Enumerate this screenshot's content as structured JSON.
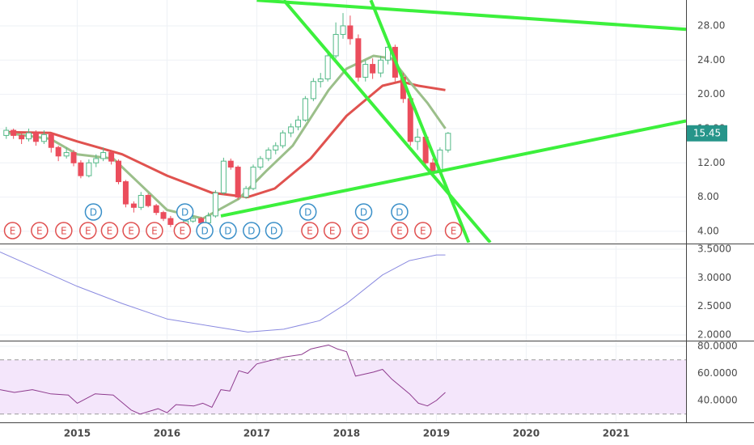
{
  "chart_data": [
    {
      "type": "candlestick",
      "xlim": [
        2014.14,
        2021.78
      ],
      "ylim": [
        2.67,
        31.02
      ],
      "yticks": [
        {
          "value": 4,
          "label": "4.00"
        },
        {
          "value": 8,
          "label": "8.00"
        },
        {
          "value": 12,
          "label": "12.00"
        },
        {
          "value": 16,
          "label": "16.00"
        },
        {
          "value": 20,
          "label": "20.00"
        },
        {
          "value": 24,
          "label": "24.00"
        },
        {
          "value": 28,
          "label": "28.00"
        }
      ],
      "up_color": "#53b987",
      "down_color": "#eb4d5c",
      "price_box_color": "#26958a",
      "x": [
        2014.21,
        2014.29,
        2014.38,
        2014.46,
        2014.54,
        2014.63,
        2014.71,
        2014.79,
        2014.88,
        2014.96,
        2015.04,
        2015.13,
        2015.21,
        2015.29,
        2015.38,
        2015.46,
        2015.54,
        2015.63,
        2015.71,
        2015.79,
        2015.88,
        2015.96,
        2016.04,
        2016.13,
        2016.21,
        2016.29,
        2016.38,
        2016.46,
        2016.54,
        2016.63,
        2016.71,
        2016.79,
        2016.88,
        2016.96,
        2017.04,
        2017.13,
        2017.21,
        2017.29,
        2017.38,
        2017.46,
        2017.54,
        2017.63,
        2017.71,
        2017.79,
        2017.88,
        2017.96,
        2018.04,
        2018.13,
        2018.21,
        2018.29,
        2018.38,
        2018.46,
        2018.54,
        2018.63,
        2018.71,
        2018.79,
        2018.88,
        2018.96,
        2019.04,
        2019.13
      ],
      "candles": [
        [
          15.2,
          16.2,
          14.8,
          15.8
        ],
        [
          15.8,
          16.0,
          14.8,
          15.2
        ],
        [
          15.2,
          15.6,
          14.2,
          14.8
        ],
        [
          14.8,
          16.0,
          14.5,
          15.5
        ],
        [
          15.5,
          15.8,
          14.0,
          14.5
        ],
        [
          14.5,
          15.8,
          14.2,
          15.3
        ],
        [
          15.3,
          15.5,
          13.2,
          13.8
        ],
        [
          13.8,
          14.0,
          12.2,
          12.8
        ],
        [
          12.8,
          13.8,
          12.5,
          13.2
        ],
        [
          13.2,
          13.5,
          11.6,
          12.0
        ],
        [
          12.0,
          12.3,
          10.2,
          10.5
        ],
        [
          10.5,
          12.4,
          10.3,
          12.0
        ],
        [
          12.0,
          13.0,
          11.5,
          12.5
        ],
        [
          12.5,
          13.8,
          12.2,
          13.2
        ],
        [
          13.2,
          13.5,
          11.8,
          12.2
        ],
        [
          12.2,
          12.4,
          9.5,
          9.8
        ],
        [
          9.8,
          10.0,
          6.8,
          7.2
        ],
        [
          7.2,
          7.5,
          6.2,
          6.8
        ],
        [
          6.8,
          8.6,
          6.5,
          8.2
        ],
        [
          8.2,
          8.4,
          6.8,
          7.0
        ],
        [
          7.0,
          7.2,
          5.9,
          6.2
        ],
        [
          6.2,
          6.4,
          5.2,
          5.5
        ],
        [
          5.5,
          5.8,
          4.5,
          4.8
        ],
        [
          4.8,
          5.0,
          4.0,
          4.5
        ],
        [
          4.5,
          5.5,
          4.3,
          5.2
        ],
        [
          5.2,
          5.9,
          5.0,
          5.5
        ],
        [
          5.5,
          5.7,
          4.7,
          5.0
        ],
        [
          5.0,
          6.2,
          4.9,
          5.8
        ],
        [
          5.8,
          8.8,
          5.6,
          8.5
        ],
        [
          8.5,
          12.6,
          8.3,
          12.2
        ],
        [
          12.2,
          12.5,
          11.2,
          11.5
        ],
        [
          11.5,
          11.7,
          7.7,
          8.0
        ],
        [
          8.0,
          9.3,
          7.8,
          9.0
        ],
        [
          9.0,
          11.8,
          8.8,
          11.5
        ],
        [
          11.5,
          12.8,
          11.2,
          12.5
        ],
        [
          12.5,
          13.8,
          12.2,
          13.5
        ],
        [
          13.5,
          14.4,
          13.0,
          14.0
        ],
        [
          14.0,
          15.8,
          13.7,
          15.5
        ],
        [
          15.5,
          16.6,
          15.0,
          16.2
        ],
        [
          16.2,
          17.5,
          15.8,
          17.0
        ],
        [
          17.0,
          19.8,
          16.8,
          19.5
        ],
        [
          19.5,
          21.9,
          19.2,
          21.5
        ],
        [
          21.5,
          22.5,
          20.8,
          21.8
        ],
        [
          21.8,
          24.9,
          21.5,
          24.5
        ],
        [
          24.5,
          28.4,
          24.2,
          27.0
        ],
        [
          27.0,
          29.5,
          26.5,
          28.0
        ],
        [
          28.0,
          29.2,
          25.8,
          26.5
        ],
        [
          26.5,
          27.0,
          21.5,
          22.0
        ],
        [
          22.0,
          24.0,
          21.5,
          23.5
        ],
        [
          23.5,
          24.2,
          21.8,
          22.5
        ],
        [
          22.5,
          24.5,
          22.0,
          24.0
        ],
        [
          24.0,
          25.8,
          23.5,
          25.5
        ],
        [
          25.5,
          25.8,
          21.5,
          22.0
        ],
        [
          22.0,
          22.5,
          19.0,
          19.5
        ],
        [
          19.5,
          19.8,
          14.0,
          14.5
        ],
        [
          14.5,
          16.0,
          13.5,
          15.0
        ],
        [
          15.0,
          15.3,
          11.5,
          12.0
        ],
        [
          12.0,
          12.5,
          10.5,
          11.0
        ],
        [
          11.0,
          13.8,
          10.8,
          13.5
        ],
        [
          13.5,
          15.6,
          13.2,
          15.45
        ]
      ],
      "series": [
        {
          "color": "#e0524f",
          "x": [
            2014.2,
            2014.7,
            2015.0,
            2015.5,
            2016.0,
            2016.5,
            2016.9,
            2017.2,
            2017.6,
            2018.0,
            2018.4,
            2018.6,
            2018.8,
            2019.1
          ],
          "values": [
            15.6,
            15.5,
            14.5,
            13,
            10.5,
            8.5,
            8.0,
            9,
            12.5,
            17.5,
            21,
            21.5,
            21,
            20.5
          ]
        },
        {
          "color": "#9bbf8a",
          "x": [
            2014.2,
            2014.7,
            2015.0,
            2015.4,
            2015.7,
            2016.0,
            2016.4,
            2016.8,
            2017.1,
            2017.4,
            2017.8,
            2018.0,
            2018.3,
            2018.5,
            2018.7,
            2018.9,
            2019.1
          ],
          "values": [
            15.5,
            14.8,
            13,
            12.5,
            9.5,
            6.5,
            5.5,
            7.8,
            11,
            14,
            20.5,
            23,
            24.5,
            24.2,
            21.5,
            19,
            16
          ]
        }
      ],
      "trend_lines": {
        "color": "#3cf03c",
        "lines": [
          {
            "x": [
              2017.0,
              2021.78
            ],
            "y": [
              31.0,
              27.6
            ]
          },
          {
            "x": [
              2016.6,
              2021.78
            ],
            "y": [
              5.8,
              16.9
            ]
          },
          {
            "x": [
              2017.3,
              2019.6
            ],
            "y": [
              31.0,
              2.7
            ]
          },
          {
            "x": [
              2018.27,
              2019.36
            ],
            "y": [
              31.0,
              2.7
            ]
          }
        ]
      },
      "events": {
        "colors": {
          "E": "#e05050",
          "D": "#3a8fc8"
        },
        "items": [
          {
            "label": "E",
            "x": 14.28
          },
          {
            "label": "E",
            "x": 14.58
          },
          {
            "label": "E",
            "x": 14.85
          },
          {
            "label": "E",
            "x": 15.12
          },
          {
            "label": "E",
            "x": 15.36
          },
          {
            "label": "E",
            "x": 15.6
          },
          {
            "label": "E",
            "x": 15.86
          },
          {
            "label": "E",
            "x": 16.17
          },
          {
            "label": "E",
            "x": 17.59
          },
          {
            "label": "E",
            "x": 17.84
          },
          {
            "label": "E",
            "x": 18.15
          },
          {
            "label": "E",
            "x": 18.59
          },
          {
            "label": "E",
            "x": 18.85
          },
          {
            "label": "E",
            "x": 19.19
          },
          {
            "label": "D",
            "x": 15.18
          },
          {
            "label": "D",
            "x": 16.2
          },
          {
            "label": "D",
            "x": 16.42
          },
          {
            "label": "D",
            "x": 16.68
          },
          {
            "label": "D",
            "x": 16.94
          },
          {
            "label": "D",
            "x": 17.19
          },
          {
            "label": "D",
            "x": 17.57
          },
          {
            "label": "D",
            "x": 18.19
          },
          {
            "label": "D",
            "x": 18.59
          }
        ]
      }
    },
    {
      "type": "line",
      "xlim": [
        2014.14,
        2021.78
      ],
      "ylim": [
        1.9,
        3.571
      ],
      "yticks": [
        {
          "value": 2,
          "label": "2.0000"
        },
        {
          "value": 2.5,
          "label": "2.5000"
        },
        {
          "value": 3,
          "label": "3.0000"
        },
        {
          "value": 3.5,
          "label": "3.5000"
        }
      ],
      "color": "#8a8ae0",
      "x": [
        2014.14,
        2014.5,
        2015.0,
        2015.5,
        2016.0,
        2016.5,
        2016.9,
        2017.3,
        2017.7,
        2018.0,
        2018.4,
        2018.7,
        2019.0,
        2019.1
      ],
      "values": [
        3.45,
        3.2,
        2.85,
        2.55,
        2.28,
        2.15,
        2.05,
        2.1,
        2.25,
        2.55,
        3.05,
        3.3,
        3.4,
        3.4
      ]
    },
    {
      "type": "line",
      "xlim": [
        2014.14,
        2021.78
      ],
      "ylim": [
        23.9,
        83
      ],
      "yticks": [
        {
          "value": 40,
          "label": "40.0000"
        },
        {
          "value": 60,
          "label": "60.0000"
        },
        {
          "value": 80,
          "label": "80.0000"
        }
      ],
      "xticks": [
        2015,
        2016,
        2017,
        2018,
        2019,
        2020,
        2021
      ],
      "color": "#8e3b8e",
      "band": [
        30,
        70
      ],
      "band_color": "#f4e6fb",
      "x": [
        2014.14,
        2014.3,
        2014.5,
        2014.7,
        2014.9,
        2015.0,
        2015.2,
        2015.4,
        2015.6,
        2015.7,
        2015.9,
        2016.0,
        2016.1,
        2016.3,
        2016.4,
        2016.5,
        2016.6,
        2016.7,
        2016.8,
        2016.9,
        2017.0,
        2017.3,
        2017.5,
        2017.6,
        2017.8,
        2017.9,
        2018.0,
        2018.1,
        2018.3,
        2018.4,
        2018.5,
        2018.7,
        2018.8,
        2018.9,
        2019.0,
        2019.1
      ],
      "values": [
        48,
        46,
        48,
        45,
        44,
        38,
        45,
        44,
        33,
        30,
        34,
        31,
        37,
        36,
        38,
        35,
        48,
        47,
        62,
        60,
        67,
        72,
        74,
        78,
        81,
        78,
        76,
        58,
        61,
        63,
        56,
        45,
        38,
        36,
        40,
        46
      ]
    }
  ]
}
